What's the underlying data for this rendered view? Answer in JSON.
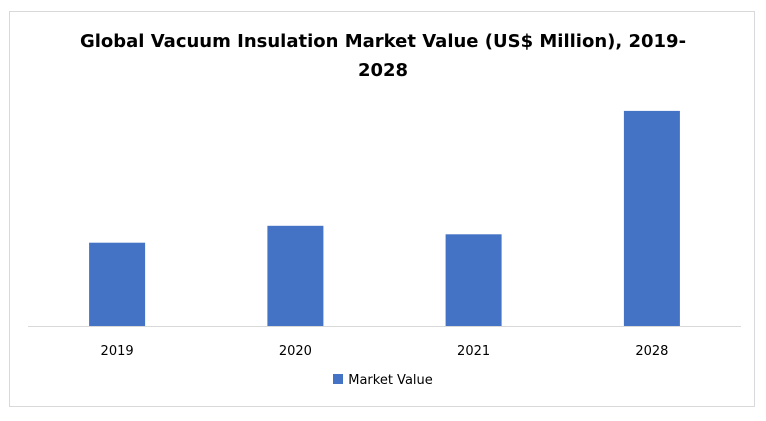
{
  "chart_data": {
    "type": "bar",
    "title_lines": [
      "Global Vacuum Insulation Market Value (US$ Million), 2019-",
      "2028"
    ],
    "categories": [
      "2019",
      "2020",
      "2021",
      "2028"
    ],
    "series": [
      {
        "name": "Market Value",
        "values": [
          79,
          95,
          87,
          204
        ],
        "color": "#4472c4"
      }
    ],
    "ylim": [
      0,
      220
    ],
    "xlabel": "",
    "ylabel": "",
    "grid": false,
    "legend_position": "bottom",
    "axis_color": "#d9d9d9"
  }
}
